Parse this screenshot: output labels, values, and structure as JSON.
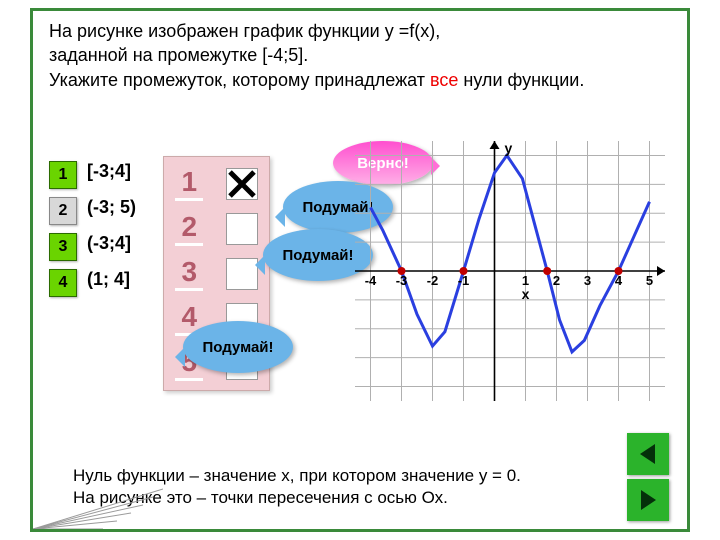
{
  "task": {
    "line1": "На рисунке изображен график функции y =f(x),",
    "line2": "заданной на промежутке [-4;5].",
    "line3_a": "Укажите промежуток, которому принадлежат ",
    "line3_red": "все",
    "line3_b": " нули функции."
  },
  "options": [
    {
      "n": "1",
      "txt": "[-3;4]",
      "green": true
    },
    {
      "n": "2",
      "txt": "(-3; 5)",
      "green": false
    },
    {
      "n": "3",
      "txt": "(-3;4]",
      "green": false
    },
    {
      "n": "4",
      "txt": "(1; 4]",
      "green": false
    }
  ],
  "panel_nums": [
    "1",
    "2",
    "3",
    "4",
    "5"
  ],
  "callouts": {
    "right": "Верно!",
    "wrong": "Подумай!"
  },
  "note": {
    "l1": "Нуль функции – значение х, при котором значение у = 0.",
    "l2": "На рисунке это – точки пересечения с осью Ох."
  },
  "chart": {
    "xticks": [
      -4,
      -3,
      -2,
      -1,
      1,
      2,
      3,
      4,
      5
    ],
    "xlabel": "x",
    "ylabel": "y",
    "grid_color": "#b0b0b0",
    "axis_color": "#000",
    "curve_color": "#2a3fe0",
    "zero_color": "#c00000",
    "x_range": [
      -4.5,
      5.5
    ],
    "y_range": [
      -4.5,
      4.5
    ],
    "zeros": [
      -3,
      -1,
      1.7,
      4
    ],
    "curve": [
      [
        -4,
        2.2
      ],
      [
        -3.6,
        1.4
      ],
      [
        -3,
        0
      ],
      [
        -2.5,
        -1.5
      ],
      [
        -2,
        -2.6
      ],
      [
        -1.6,
        -2.1
      ],
      [
        -1,
        0
      ],
      [
        -0.5,
        1.8
      ],
      [
        0,
        3.4
      ],
      [
        0.4,
        4
      ],
      [
        0.9,
        3.2
      ],
      [
        1.3,
        1.6
      ],
      [
        1.7,
        0
      ],
      [
        2.1,
        -1.7
      ],
      [
        2.5,
        -2.8
      ],
      [
        2.9,
        -2.4
      ],
      [
        3.4,
        -1.2
      ],
      [
        4,
        0
      ],
      [
        4.5,
        1.2
      ],
      [
        5,
        2.4
      ]
    ]
  }
}
